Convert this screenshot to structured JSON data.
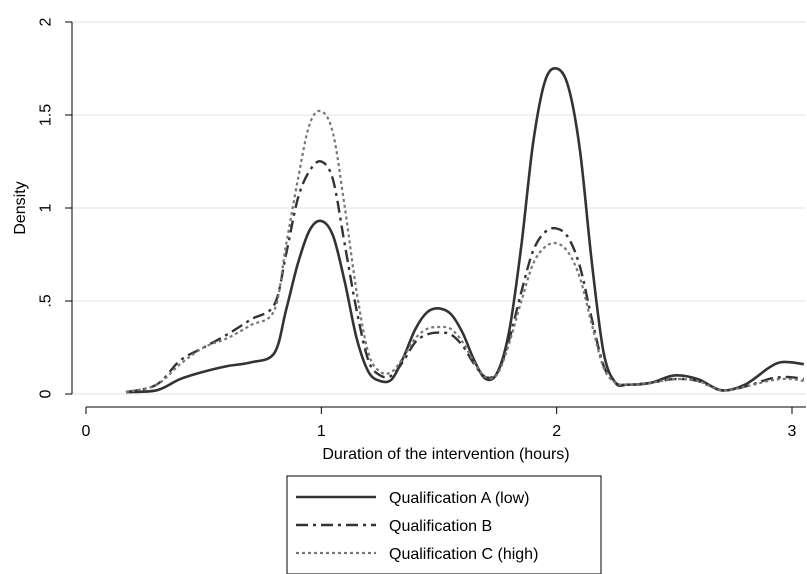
{
  "chart_data": {
    "type": "line",
    "title": "",
    "xlabel": "Duration of the intervention (hours)",
    "ylabel": "Density",
    "xlim": [
      0,
      3.05
    ],
    "ylim": [
      0,
      2
    ],
    "x_ticks": [
      0,
      1,
      2,
      3
    ],
    "x_tick_labels": [
      "0",
      "1",
      "2",
      "3"
    ],
    "y_ticks": [
      0,
      0.5,
      1,
      1.5,
      2
    ],
    "y_tick_labels": [
      "0",
      ".5",
      "1",
      "1.5",
      "2"
    ],
    "grid": true,
    "legend_position": "bottom",
    "series": [
      {
        "name": "Qualification A (low)",
        "style": "solid",
        "color": "#333333",
        "x": [
          0.17,
          0.3,
          0.4,
          0.5,
          0.6,
          0.7,
          0.8,
          0.85,
          0.9,
          0.95,
          1.0,
          1.05,
          1.1,
          1.15,
          1.2,
          1.25,
          1.3,
          1.35,
          1.4,
          1.45,
          1.5,
          1.55,
          1.6,
          1.65,
          1.7,
          1.75,
          1.8,
          1.85,
          1.9,
          1.95,
          2.0,
          2.05,
          2.1,
          2.15,
          2.2,
          2.25,
          2.3,
          2.4,
          2.5,
          2.6,
          2.7,
          2.8,
          2.9,
          2.95,
          3.0,
          3.05
        ],
        "y": [
          0.01,
          0.02,
          0.08,
          0.12,
          0.15,
          0.17,
          0.22,
          0.45,
          0.7,
          0.88,
          0.93,
          0.85,
          0.6,
          0.3,
          0.12,
          0.07,
          0.08,
          0.2,
          0.35,
          0.44,
          0.46,
          0.43,
          0.33,
          0.18,
          0.08,
          0.12,
          0.35,
          0.8,
          1.35,
          1.68,
          1.75,
          1.65,
          1.3,
          0.7,
          0.22,
          0.06,
          0.05,
          0.06,
          0.1,
          0.08,
          0.02,
          0.05,
          0.14,
          0.17,
          0.17,
          0.16
        ]
      },
      {
        "name": "Qualification B",
        "style": "dashdot",
        "color": "#333333",
        "x": [
          0.17,
          0.3,
          0.4,
          0.5,
          0.6,
          0.7,
          0.8,
          0.85,
          0.9,
          0.95,
          1.0,
          1.05,
          1.1,
          1.15,
          1.2,
          1.25,
          1.3,
          1.35,
          1.4,
          1.45,
          1.5,
          1.55,
          1.6,
          1.65,
          1.7,
          1.75,
          1.8,
          1.85,
          1.9,
          1.95,
          2.0,
          2.05,
          2.1,
          2.15,
          2.2,
          2.25,
          2.3,
          2.4,
          2.5,
          2.6,
          2.7,
          2.8,
          2.9,
          2.95,
          3.0,
          3.05
        ],
        "y": [
          0.01,
          0.05,
          0.18,
          0.25,
          0.32,
          0.4,
          0.48,
          0.75,
          1.05,
          1.2,
          1.25,
          1.15,
          0.8,
          0.45,
          0.18,
          0.1,
          0.1,
          0.18,
          0.28,
          0.32,
          0.33,
          0.32,
          0.26,
          0.16,
          0.09,
          0.12,
          0.3,
          0.55,
          0.77,
          0.87,
          0.89,
          0.84,
          0.68,
          0.4,
          0.15,
          0.06,
          0.05,
          0.06,
          0.08,
          0.07,
          0.02,
          0.04,
          0.08,
          0.09,
          0.09,
          0.08
        ]
      },
      {
        "name": "Qualification C (high)",
        "style": "dotted",
        "color": "#777777",
        "x": [
          0.17,
          0.3,
          0.4,
          0.5,
          0.6,
          0.7,
          0.8,
          0.85,
          0.9,
          0.95,
          1.0,
          1.05,
          1.1,
          1.15,
          1.2,
          1.25,
          1.3,
          1.35,
          1.4,
          1.45,
          1.5,
          1.55,
          1.6,
          1.65,
          1.7,
          1.75,
          1.8,
          1.85,
          1.9,
          1.95,
          2.0,
          2.05,
          2.1,
          2.15,
          2.2,
          2.25,
          2.3,
          2.4,
          2.5,
          2.6,
          2.7,
          2.8,
          2.9,
          2.95,
          3.0,
          3.05
        ],
        "y": [
          0.01,
          0.05,
          0.16,
          0.25,
          0.3,
          0.37,
          0.45,
          0.8,
          1.15,
          1.45,
          1.52,
          1.4,
          1.0,
          0.55,
          0.22,
          0.12,
          0.12,
          0.2,
          0.3,
          0.35,
          0.36,
          0.35,
          0.28,
          0.17,
          0.09,
          0.11,
          0.28,
          0.5,
          0.7,
          0.79,
          0.81,
          0.76,
          0.62,
          0.37,
          0.14,
          0.06,
          0.05,
          0.06,
          0.08,
          0.07,
          0.02,
          0.04,
          0.07,
          0.08,
          0.08,
          0.07
        ]
      }
    ]
  }
}
